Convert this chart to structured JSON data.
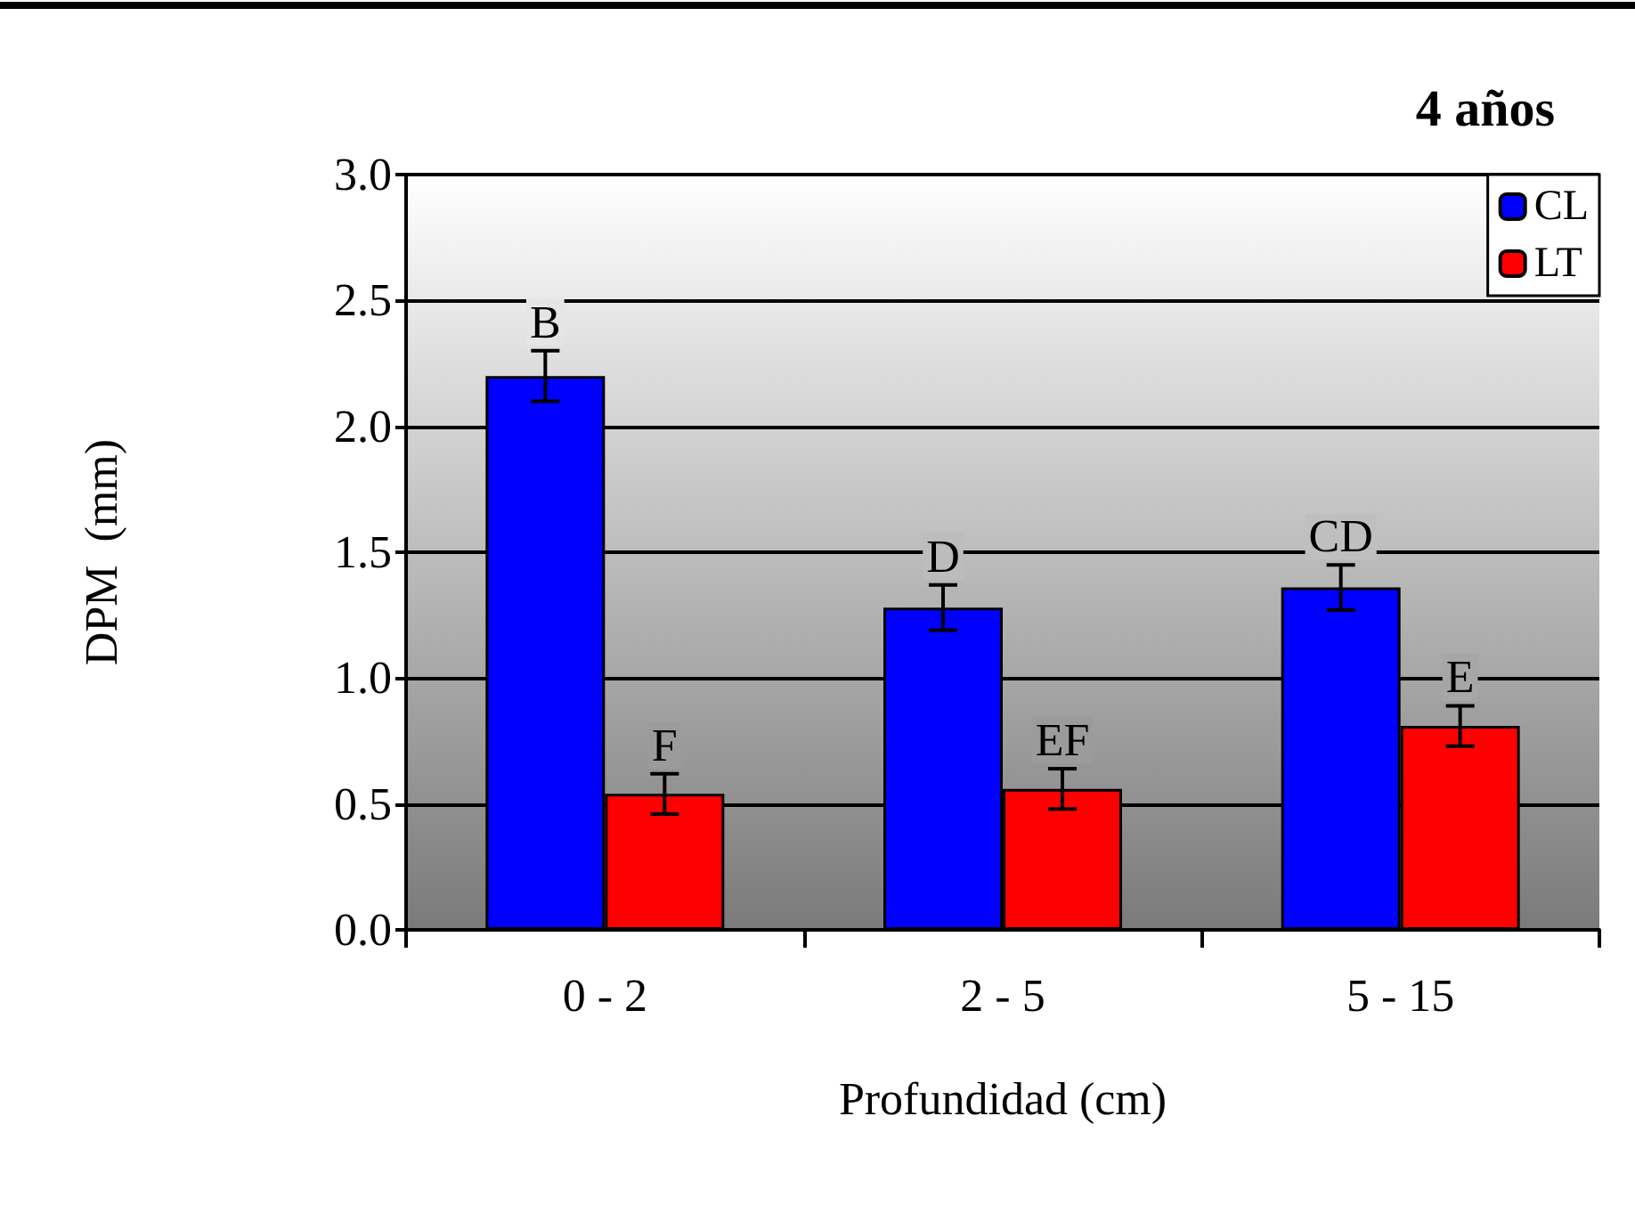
{
  "chart_data": {
    "type": "bar",
    "title": "4 años",
    "xlabel": "Profundidad (cm)",
    "ylabel": "DPM  (mm)",
    "categories": [
      "0 - 2",
      "2 - 5",
      "5 - 15"
    ],
    "series": [
      {
        "name": "CL",
        "color": "#0000ff",
        "values": [
          2.2,
          1.28,
          1.36
        ],
        "errors": [
          0.1,
          0.09,
          0.09
        ]
      },
      {
        "name": "LT",
        "color": "#ff0000",
        "values": [
          0.54,
          0.56,
          0.81
        ],
        "errors": [
          0.08,
          0.08,
          0.08
        ]
      }
    ],
    "ylim": [
      0,
      3
    ],
    "yticks": [
      {
        "value": 0,
        "label": "0.0"
      },
      {
        "value": 0.5,
        "label": "0.5"
      },
      {
        "value": 1,
        "label": "1.0"
      },
      {
        "value": 1.5,
        "label": "1.5"
      },
      {
        "value": 2,
        "label": "2.0"
      },
      {
        "value": 2.5,
        "label": "2.5"
      },
      {
        "value": 3,
        "label": "3.0"
      }
    ],
    "grid": "y",
    "legend": "top right",
    "annotations": [
      {
        "text": "B",
        "x": "0 - 2",
        "y": 2.2
      },
      {
        "text": "F",
        "x": "0 - 2",
        "y": 0.54
      },
      {
        "text": "D",
        "x": "2 - 5",
        "y": 1.28
      },
      {
        "text": "EF",
        "x": "2 - 5",
        "y": 0.56
      },
      {
        "text": "CD",
        "x": "5 - 15",
        "y": 1.36
      },
      {
        "text": "E",
        "x": "5 - 15",
        "y": 0.81
      }
    ]
  }
}
